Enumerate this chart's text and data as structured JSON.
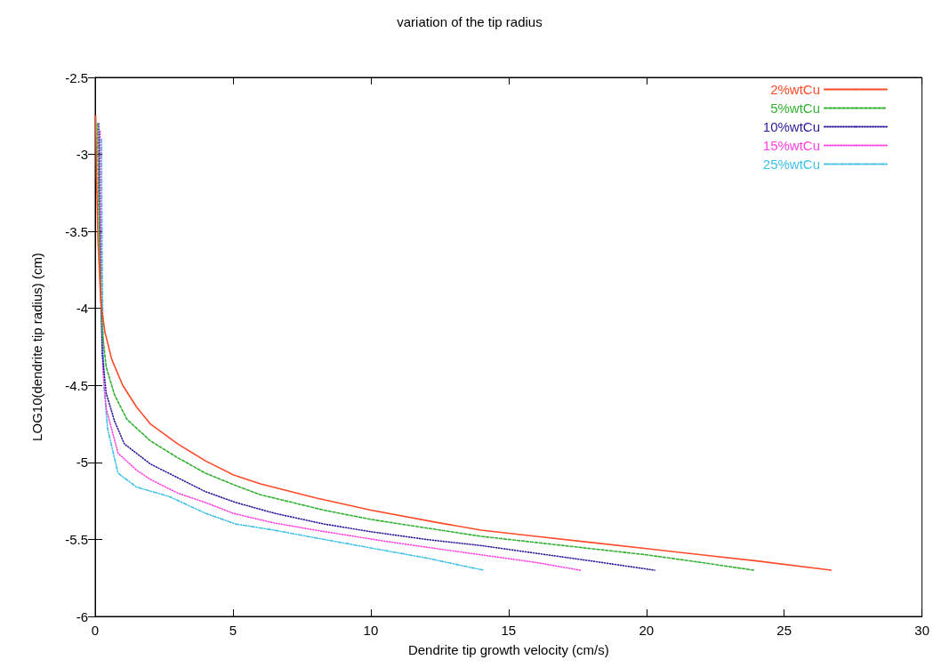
{
  "chart_data": {
    "type": "line",
    "title": "variation of the tip radius",
    "xlabel": "Dendrite tip growth velocity (cm/s)",
    "ylabel": "LOG10(dendrite tip radius) (cm)",
    "xlim": [
      0,
      30
    ],
    "xticks": [
      0,
      5,
      10,
      15,
      20,
      25,
      30
    ],
    "ylim": [
      -6,
      -2.5
    ],
    "yticks": [
      -6,
      -5.5,
      -5,
      -4.5,
      -4,
      -3.5,
      -3,
      -2.5
    ],
    "grid": false,
    "legend": "top right",
    "marker": "none",
    "series": [
      {
        "name": "2%wtCu",
        "color": "#ff4a2a",
        "line_style": "solid",
        "x": [
          0.02,
          0.05,
          0.1,
          0.2,
          0.35,
          0.6,
          1,
          1.5,
          2,
          3,
          4,
          5,
          6,
          8,
          10,
          12.4,
          14,
          16,
          18,
          20,
          22,
          24,
          26.7
        ],
        "values": [
          -2.75,
          -3.15,
          -3.55,
          -3.95,
          -4.15,
          -4.33,
          -4.5,
          -4.64,
          -4.75,
          -4.88,
          -4.99,
          -5.08,
          -5.14,
          -5.23,
          -5.31,
          -5.39,
          -5.44,
          -5.48,
          -5.52,
          -5.56,
          -5.6,
          -5.64,
          -5.7
        ]
      },
      {
        "name": "5%wtCu",
        "color": "#33b033",
        "line_style": "dashed",
        "x": [
          0.08,
          0.12,
          0.18,
          0.26,
          0.4,
          0.7,
          1.15,
          2,
          3,
          4,
          5.1,
          6,
          8.3,
          10,
          11.8,
          14,
          16,
          18,
          20,
          22,
          23.9
        ],
        "values": [
          -2.8,
          -3.3,
          -3.75,
          -4.15,
          -4.38,
          -4.56,
          -4.72,
          -4.86,
          -4.97,
          -5.07,
          -5.15,
          -5.21,
          -5.31,
          -5.37,
          -5.42,
          -5.48,
          -5.52,
          -5.56,
          -5.6,
          -5.65,
          -5.7
        ]
      },
      {
        "name": "10%wtCu",
        "color": "#2a1a9a",
        "line_style": "dotted",
        "x": [
          0.13,
          0.16,
          0.2,
          0.26,
          0.4,
          0.7,
          1.06,
          2,
          3,
          4,
          5.1,
          6.5,
          8.3,
          10,
          12,
          14,
          16,
          18,
          20.3
        ],
        "values": [
          -2.8,
          -3.4,
          -3.9,
          -4.3,
          -4.55,
          -4.73,
          -4.88,
          -5.01,
          -5.1,
          -5.19,
          -5.26,
          -5.33,
          -5.4,
          -5.45,
          -5.5,
          -5.54,
          -5.59,
          -5.64,
          -5.7
        ]
      },
      {
        "name": "15%wtCu",
        "color": "#ff40e0",
        "line_style": "dotted",
        "x": [
          0.18,
          0.2,
          0.23,
          0.28,
          0.4,
          0.83,
          1.5,
          2,
          3,
          4,
          5,
          6.4,
          8,
          10.45,
          12,
          14,
          16,
          17.6
        ],
        "values": [
          -2.85,
          -3.5,
          -4,
          -4.4,
          -4.65,
          -4.94,
          -5.05,
          -5.11,
          -5.2,
          -5.26,
          -5.33,
          -5.39,
          -5.44,
          -5.51,
          -5.55,
          -5.6,
          -5.65,
          -5.7
        ]
      },
      {
        "name": "25%wtCu",
        "color": "#40c0e8",
        "line_style": "dashdot",
        "x": [
          0.23,
          0.25,
          0.28,
          0.32,
          0.45,
          0.83,
          1.5,
          2.66,
          4,
          5.1,
          6.5,
          8,
          10.45,
          12,
          14.1
        ],
        "values": [
          -2.9,
          -3.6,
          -4.1,
          -4.5,
          -4.78,
          -5.07,
          -5.16,
          -5.22,
          -5.33,
          -5.4,
          -5.44,
          -5.49,
          -5.57,
          -5.62,
          -5.7
        ]
      }
    ]
  }
}
